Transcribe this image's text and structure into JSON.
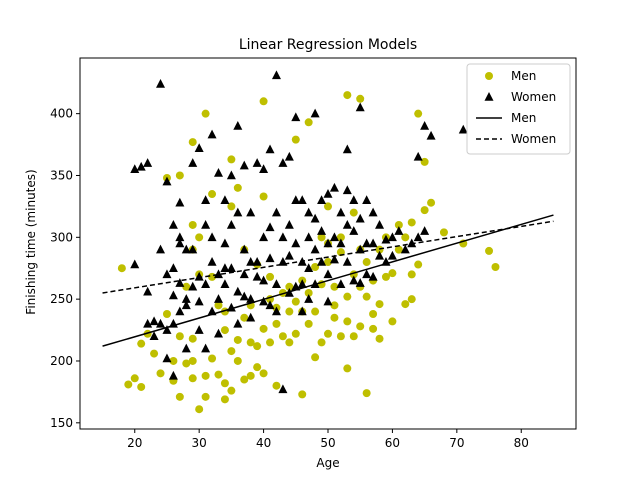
{
  "chart_data": {
    "type": "scatter",
    "title": "Linear Regression Models",
    "xlabel": "Age",
    "ylabel": "Finishing time (minutes)",
    "xlim": [
      11.5,
      88.5
    ],
    "ylim": [
      145,
      445
    ],
    "xticks": [
      20,
      30,
      40,
      50,
      60,
      70,
      80
    ],
    "yticks": [
      150,
      200,
      250,
      300,
      350,
      400
    ],
    "grid": false,
    "legend": {
      "placement": "top-right",
      "entries": [
        {
          "label": "Men",
          "kind": "marker-circle",
          "color": "#bfbf00"
        },
        {
          "label": "Women",
          "kind": "marker-triangle",
          "color": "#000000"
        },
        {
          "label": "Men",
          "kind": "line-solid",
          "color": "#000000"
        },
        {
          "label": "Women",
          "kind": "line-dashed",
          "color": "#000000"
        }
      ]
    },
    "series": [
      {
        "name": "Men",
        "kind": "scatter",
        "marker": "circle",
        "color": "#bfbf00",
        "points": [
          [
            18,
            275
          ],
          [
            19,
            181
          ],
          [
            20,
            186
          ],
          [
            21,
            179
          ],
          [
            21,
            214
          ],
          [
            22,
            222
          ],
          [
            23,
            206
          ],
          [
            24,
            190
          ],
          [
            25,
            238
          ],
          [
            25,
            348
          ],
          [
            26,
            184
          ],
          [
            26,
            200
          ],
          [
            27,
            171
          ],
          [
            27,
            350
          ],
          [
            27,
            220
          ],
          [
            28,
            198
          ],
          [
            28,
            260
          ],
          [
            29,
            186
          ],
          [
            29,
            377
          ],
          [
            29,
            310
          ],
          [
            29,
            290
          ],
          [
            29,
            218
          ],
          [
            29,
            200
          ],
          [
            30,
            161
          ],
          [
            30,
            300
          ],
          [
            30,
            270
          ],
          [
            31,
            171
          ],
          [
            31,
            400
          ],
          [
            31,
            188
          ],
          [
            32,
            335
          ],
          [
            32,
            202
          ],
          [
            32,
            268
          ],
          [
            33,
            189
          ],
          [
            33,
            245
          ],
          [
            34,
            182
          ],
          [
            34,
            169
          ],
          [
            34,
            240
          ],
          [
            34,
            225
          ],
          [
            35,
            176
          ],
          [
            35,
            363
          ],
          [
            35,
            325
          ],
          [
            35,
            208
          ],
          [
            36,
            217
          ],
          [
            36,
            200
          ],
          [
            36,
            340
          ],
          [
            37,
            235
          ],
          [
            37,
            185
          ],
          [
            37,
            290
          ],
          [
            38,
            215
          ],
          [
            38,
            188
          ],
          [
            38,
            245
          ],
          [
            39,
            212
          ],
          [
            39,
            195
          ],
          [
            39,
            278
          ],
          [
            40,
            410
          ],
          [
            40,
            333
          ],
          [
            40,
            226
          ],
          [
            40,
            190
          ],
          [
            41,
            215
          ],
          [
            41,
            250
          ],
          [
            41,
            268
          ],
          [
            42,
            243
          ],
          [
            42,
            180
          ],
          [
            42,
            230
          ],
          [
            43,
            220
          ],
          [
            43,
            255
          ],
          [
            44,
            215
          ],
          [
            44,
            260
          ],
          [
            44,
            240
          ],
          [
            45,
            379
          ],
          [
            45,
            248
          ],
          [
            45,
            222
          ],
          [
            46,
            173
          ],
          [
            46,
            240
          ],
          [
            46,
            265
          ],
          [
            47,
            393
          ],
          [
            47,
            230
          ],
          [
            47,
            255
          ],
          [
            48,
            203
          ],
          [
            48,
            276
          ],
          [
            48,
            240
          ],
          [
            49,
            215
          ],
          [
            49,
            300
          ],
          [
            49,
            262
          ],
          [
            50,
            325
          ],
          [
            50,
            280
          ],
          [
            50,
            295
          ],
          [
            50,
            222
          ],
          [
            51,
            260
          ],
          [
            51,
            235
          ],
          [
            51,
            245
          ],
          [
            52,
            300
          ],
          [
            52,
            220
          ],
          [
            52,
            288
          ],
          [
            53,
            415
          ],
          [
            53,
            194
          ],
          [
            53,
            252
          ],
          [
            53,
            232
          ],
          [
            54,
            320
          ],
          [
            54,
            270
          ],
          [
            54,
            220
          ],
          [
            55,
            412
          ],
          [
            55,
            290
          ],
          [
            55,
            260
          ],
          [
            55,
            228
          ],
          [
            56,
            174
          ],
          [
            56,
            252
          ],
          [
            56,
            280
          ],
          [
            57,
            238
          ],
          [
            57,
            226
          ],
          [
            57,
            265
          ],
          [
            58,
            290
          ],
          [
            58,
            246
          ],
          [
            58,
            218
          ],
          [
            59,
            268
          ],
          [
            59,
            300
          ],
          [
            60,
            271
          ],
          [
            60,
            232
          ],
          [
            61,
            310
          ],
          [
            61,
            290
          ],
          [
            62,
            246
          ],
          [
            62,
            300
          ],
          [
            63,
            312
          ],
          [
            63,
            270
          ],
          [
            63,
            250
          ],
          [
            64,
            400
          ],
          [
            64,
            278
          ],
          [
            65,
            361
          ],
          [
            65,
            322
          ],
          [
            66,
            328
          ],
          [
            68,
            304
          ],
          [
            71,
            295
          ],
          [
            75,
            289
          ],
          [
            76,
            276
          ]
        ]
      },
      {
        "name": "Women",
        "kind": "scatter",
        "marker": "triangle",
        "color": "#000000",
        "points": [
          [
            20,
            355
          ],
          [
            20,
            278
          ],
          [
            21,
            357
          ],
          [
            22,
            360
          ],
          [
            22,
            256
          ],
          [
            22,
            230
          ],
          [
            23,
            232
          ],
          [
            23,
            220
          ],
          [
            24,
            424
          ],
          [
            24,
            290
          ],
          [
            24,
            230
          ],
          [
            25,
            270
          ],
          [
            25,
            202
          ],
          [
            25,
            345
          ],
          [
            25,
            225
          ],
          [
            26,
            310
          ],
          [
            26,
            275
          ],
          [
            26,
            253
          ],
          [
            26,
            230
          ],
          [
            26,
            188
          ],
          [
            27,
            328
          ],
          [
            27,
            240
          ],
          [
            27,
            300
          ],
          [
            27,
            263
          ],
          [
            27,
            295
          ],
          [
            28,
            290
          ],
          [
            28,
            245
          ],
          [
            28,
            210
          ],
          [
            28,
            250
          ],
          [
            29,
            360
          ],
          [
            29,
            290
          ],
          [
            29,
            260
          ],
          [
            30,
            372
          ],
          [
            30,
            268
          ],
          [
            30,
            248
          ],
          [
            30,
            225
          ],
          [
            31,
            330
          ],
          [
            31,
            310
          ],
          [
            31,
            262
          ],
          [
            31,
            210
          ],
          [
            32,
            383
          ],
          [
            32,
            300
          ],
          [
            32,
            280
          ],
          [
            32,
            240
          ],
          [
            33,
            352
          ],
          [
            33,
            270
          ],
          [
            33,
            250
          ],
          [
            33,
            222
          ],
          [
            34,
            330
          ],
          [
            34,
            275
          ],
          [
            34,
            295
          ],
          [
            34,
            262
          ],
          [
            35,
            350
          ],
          [
            35,
            310
          ],
          [
            35,
            275
          ],
          [
            35,
            243
          ],
          [
            36,
            390
          ],
          [
            36,
            320
          ],
          [
            36,
            256
          ],
          [
            36,
            230
          ],
          [
            37,
            358
          ],
          [
            37,
            290
          ],
          [
            37,
            270
          ],
          [
            37,
            252
          ],
          [
            38,
            320
          ],
          [
            38,
            280
          ],
          [
            38,
            250
          ],
          [
            38,
            235
          ],
          [
            39,
            360
          ],
          [
            39,
            280
          ],
          [
            39,
            268
          ],
          [
            40,
            355
          ],
          [
            40,
            300
          ],
          [
            40,
            265
          ],
          [
            40,
            248
          ],
          [
            41,
            371
          ],
          [
            41,
            308
          ],
          [
            41,
            283
          ],
          [
            41,
            245
          ],
          [
            42,
            431
          ],
          [
            42,
            320
          ],
          [
            42,
            262
          ],
          [
            42,
            240
          ],
          [
            43,
            360
          ],
          [
            43,
            300
          ],
          [
            43,
            280
          ],
          [
            43,
            177
          ],
          [
            44,
            365
          ],
          [
            44,
            310
          ],
          [
            44,
            285
          ],
          [
            44,
            255
          ],
          [
            45,
            397
          ],
          [
            45,
            330
          ],
          [
            45,
            295
          ],
          [
            45,
            260
          ],
          [
            46,
            330
          ],
          [
            46,
            280
          ],
          [
            46,
            262
          ],
          [
            46,
            240
          ],
          [
            47,
            320
          ],
          [
            47,
            300
          ],
          [
            47,
            275
          ],
          [
            47,
            250
          ],
          [
            48,
            400
          ],
          [
            48,
            315
          ],
          [
            48,
            290
          ],
          [
            48,
            262
          ],
          [
            49,
            330
          ],
          [
            49,
            305
          ],
          [
            49,
            280
          ],
          [
            50,
            335
          ],
          [
            50,
            295
          ],
          [
            50,
            270
          ],
          [
            50,
            248
          ],
          [
            51,
            340
          ],
          [
            51,
            300
          ],
          [
            51,
            282
          ],
          [
            52,
            320
          ],
          [
            52,
            295
          ],
          [
            52,
            262
          ],
          [
            53,
            371
          ],
          [
            53,
            338
          ],
          [
            53,
            310
          ],
          [
            53,
            280
          ],
          [
            54,
            330
          ],
          [
            54,
            305
          ],
          [
            54,
            265
          ],
          [
            55,
            405
          ],
          [
            55,
            315
          ],
          [
            55,
            290
          ],
          [
            55,
            263
          ],
          [
            56,
            330
          ],
          [
            56,
            295
          ],
          [
            56,
            270
          ],
          [
            57,
            320
          ],
          [
            57,
            295
          ],
          [
            57,
            268
          ],
          [
            58,
            310
          ],
          [
            58,
            285
          ],
          [
            59,
            298
          ],
          [
            59,
            280
          ],
          [
            60,
            300
          ],
          [
            60,
            285
          ],
          [
            61,
            305
          ],
          [
            62,
            290
          ],
          [
            63,
            295
          ],
          [
            64,
            365
          ],
          [
            64,
            300
          ],
          [
            65,
            390
          ],
          [
            65,
            305
          ],
          [
            66,
            382
          ],
          [
            71,
            387
          ]
        ]
      },
      {
        "name": "Men",
        "kind": "line",
        "style": "solid",
        "color": "#000000",
        "x": [
          15,
          85
        ],
        "y": [
          212,
          318
        ]
      },
      {
        "name": "Women",
        "kind": "line",
        "style": "dashed",
        "color": "#000000",
        "x": [
          15,
          85
        ],
        "y": [
          255,
          313
        ]
      }
    ]
  }
}
